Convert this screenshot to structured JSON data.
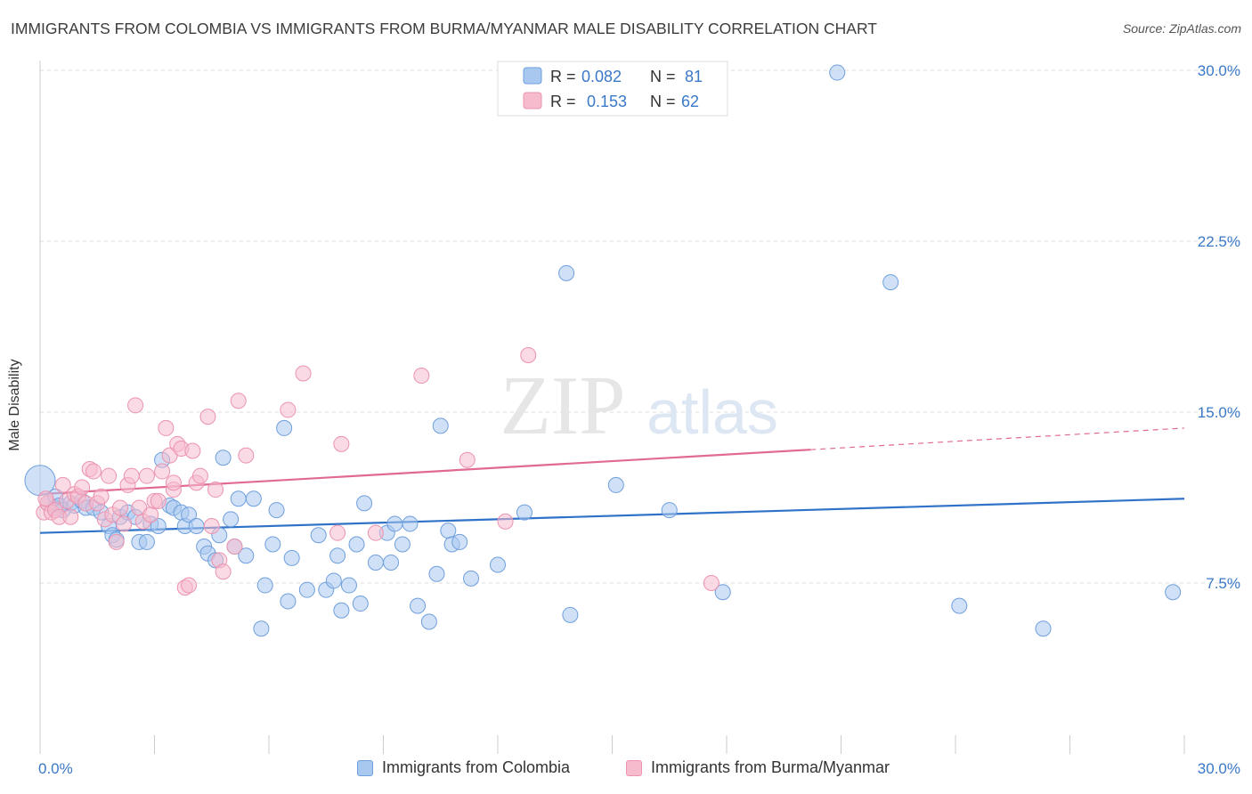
{
  "title": "IMMIGRANTS FROM COLOMBIA VS IMMIGRANTS FROM BURMA/MYANMAR MALE DISABILITY CORRELATION CHART",
  "source": "Source: ZipAtlas.com",
  "watermark": {
    "zip": "ZIP",
    "atlas": "atlas"
  },
  "colors": {
    "blue_fill": "#a9c8f0",
    "blue_stroke": "#6f9fdc",
    "blue_line": "#2f72c8",
    "pink_fill": "#f6bccd",
    "pink_stroke": "#ec93ae",
    "pink_line": "#e06a93",
    "tick_text": "#3a78c8",
    "grid": "#dddddd"
  },
  "legend_top": [
    {
      "r_label": "R =",
      "r_value": "0.082",
      "n_label": "N =",
      "n_value": "81"
    },
    {
      "r_label": "R =",
      "r_value": "0.153",
      "n_label": "N =",
      "n_value": "62"
    }
  ],
  "chart_data": {
    "type": "scatter",
    "title": "IMMIGRANTS FROM COLOMBIA VS IMMIGRANTS FROM BURMA/MYANMAR MALE DISABILITY CORRELATION CHART",
    "xlabel": "",
    "ylabel": "Male Disability",
    "xlim": [
      0,
      30
    ],
    "ylim": [
      0,
      31
    ],
    "x_tick_labels": [
      "0.0%",
      "30.0%"
    ],
    "y_ticks": [
      7.5,
      15.0,
      22.5,
      30.0
    ],
    "y_tick_labels": [
      "7.5%",
      "15.0%",
      "22.5%",
      "30.0%"
    ],
    "grid": "horizontal dashed",
    "legend_position": "top-center",
    "series": [
      {
        "name": "Immigrants from Colombia",
        "color": "blue",
        "trend": {
          "x": [
            0,
            30
          ],
          "y": [
            9.7,
            11.2
          ],
          "dashed_from_x": null
        },
        "points": [
          [
            0.2,
            11.0
          ],
          [
            0.4,
            11.3
          ],
          [
            0.4,
            10.8
          ],
          [
            0.5,
            10.9
          ],
          [
            0.6,
            10.7
          ],
          [
            0.8,
            11.0
          ],
          [
            0.9,
            10.9
          ],
          [
            1.1,
            11.1
          ],
          [
            1.2,
            10.8
          ],
          [
            1.4,
            10.8
          ],
          [
            1.6,
            10.6
          ],
          [
            1.8,
            10.0
          ],
          [
            1.9,
            9.6
          ],
          [
            2.0,
            9.4
          ],
          [
            2.1,
            10.4
          ],
          [
            2.3,
            10.6
          ],
          [
            2.5,
            10.4
          ],
          [
            2.6,
            9.3
          ],
          [
            2.8,
            9.3
          ],
          [
            2.9,
            10.1
          ],
          [
            3.1,
            10.0
          ],
          [
            3.2,
            12.9
          ],
          [
            3.4,
            10.9
          ],
          [
            3.5,
            10.8
          ],
          [
            3.7,
            10.6
          ],
          [
            3.8,
            10.0
          ],
          [
            3.9,
            10.5
          ],
          [
            4.1,
            10.0
          ],
          [
            4.3,
            9.1
          ],
          [
            4.4,
            8.8
          ],
          [
            4.6,
            8.5
          ],
          [
            4.7,
            9.6
          ],
          [
            4.8,
            13.0
          ],
          [
            5.0,
            10.3
          ],
          [
            5.1,
            9.1
          ],
          [
            5.2,
            11.2
          ],
          [
            5.4,
            8.7
          ],
          [
            5.6,
            11.2
          ],
          [
            5.8,
            5.5
          ],
          [
            5.9,
            7.4
          ],
          [
            6.1,
            9.2
          ],
          [
            6.2,
            10.7
          ],
          [
            6.4,
            14.3
          ],
          [
            6.5,
            6.7
          ],
          [
            6.6,
            8.6
          ],
          [
            7.0,
            7.2
          ],
          [
            7.3,
            9.6
          ],
          [
            7.5,
            7.2
          ],
          [
            7.7,
            7.6
          ],
          [
            7.8,
            8.7
          ],
          [
            7.9,
            6.3
          ],
          [
            8.1,
            7.4
          ],
          [
            8.3,
            9.2
          ],
          [
            8.4,
            6.6
          ],
          [
            8.5,
            11.0
          ],
          [
            8.8,
            8.4
          ],
          [
            9.1,
            9.7
          ],
          [
            9.2,
            8.4
          ],
          [
            9.3,
            10.1
          ],
          [
            9.5,
            9.2
          ],
          [
            9.7,
            10.1
          ],
          [
            9.9,
            6.5
          ],
          [
            10.2,
            5.8
          ],
          [
            10.4,
            7.9
          ],
          [
            10.5,
            14.4
          ],
          [
            10.7,
            9.8
          ],
          [
            10.8,
            9.2
          ],
          [
            11.0,
            9.3
          ],
          [
            11.3,
            7.7
          ],
          [
            12.0,
            8.3
          ],
          [
            12.7,
            10.6
          ],
          [
            13.8,
            21.1
          ],
          [
            13.9,
            6.1
          ],
          [
            15.1,
            11.8
          ],
          [
            16.5,
            10.7
          ],
          [
            17.9,
            7.1
          ],
          [
            20.9,
            29.9
          ],
          [
            22.3,
            20.7
          ],
          [
            24.1,
            6.5
          ],
          [
            26.3,
            5.5
          ],
          [
            29.7,
            7.1
          ]
        ],
        "big_point": [
          0.0,
          12.0
        ]
      },
      {
        "name": "Immigrants from Burma/Myanmar",
        "color": "pink",
        "trend": {
          "x": [
            0,
            30
          ],
          "y": [
            11.4,
            14.3
          ],
          "dashed_from_x": 20.2
        },
        "points": [
          [
            0.1,
            10.6
          ],
          [
            0.2,
            11.0
          ],
          [
            0.3,
            10.6
          ],
          [
            0.4,
            10.7
          ],
          [
            0.5,
            10.4
          ],
          [
            0.6,
            11.8
          ],
          [
            0.7,
            11.1
          ],
          [
            0.8,
            10.4
          ],
          [
            0.9,
            11.4
          ],
          [
            1.0,
            11.3
          ],
          [
            1.1,
            11.7
          ],
          [
            1.2,
            11.0
          ],
          [
            1.3,
            12.5
          ],
          [
            1.4,
            12.4
          ],
          [
            1.5,
            11.0
          ],
          [
            1.6,
            11.3
          ],
          [
            1.7,
            10.3
          ],
          [
            1.8,
            12.2
          ],
          [
            1.9,
            10.5
          ],
          [
            2.0,
            9.3
          ],
          [
            2.1,
            10.8
          ],
          [
            2.2,
            10.1
          ],
          [
            2.3,
            11.8
          ],
          [
            2.4,
            12.2
          ],
          [
            2.5,
            15.3
          ],
          [
            2.6,
            10.8
          ],
          [
            2.7,
            10.2
          ],
          [
            2.8,
            12.2
          ],
          [
            2.9,
            10.5
          ],
          [
            3.0,
            11.1
          ],
          [
            3.1,
            11.1
          ],
          [
            3.2,
            12.4
          ],
          [
            3.3,
            14.3
          ],
          [
            3.4,
            13.1
          ],
          [
            3.5,
            11.6
          ],
          [
            3.5,
            11.9
          ],
          [
            3.6,
            13.6
          ],
          [
            3.7,
            13.4
          ],
          [
            3.8,
            7.3
          ],
          [
            3.9,
            7.4
          ],
          [
            4.0,
            13.3
          ],
          [
            4.1,
            11.9
          ],
          [
            4.2,
            12.2
          ],
          [
            4.4,
            14.8
          ],
          [
            4.5,
            10.0
          ],
          [
            4.6,
            11.6
          ],
          [
            4.7,
            8.5
          ],
          [
            4.8,
            8.0
          ],
          [
            5.1,
            9.1
          ],
          [
            5.2,
            15.5
          ],
          [
            5.4,
            13.1
          ],
          [
            6.5,
            15.1
          ],
          [
            6.9,
            16.7
          ],
          [
            7.8,
            9.7
          ],
          [
            7.9,
            13.6
          ],
          [
            8.8,
            9.7
          ],
          [
            10.0,
            16.6
          ],
          [
            11.2,
            12.9
          ],
          [
            12.2,
            10.2
          ],
          [
            12.8,
            17.5
          ],
          [
            17.6,
            7.5
          ],
          [
            0.15,
            11.2
          ]
        ]
      }
    ]
  },
  "legend_bottom": [
    {
      "label": "Immigrants from Colombia"
    },
    {
      "label": "Immigrants from Burma/Myanmar"
    }
  ]
}
